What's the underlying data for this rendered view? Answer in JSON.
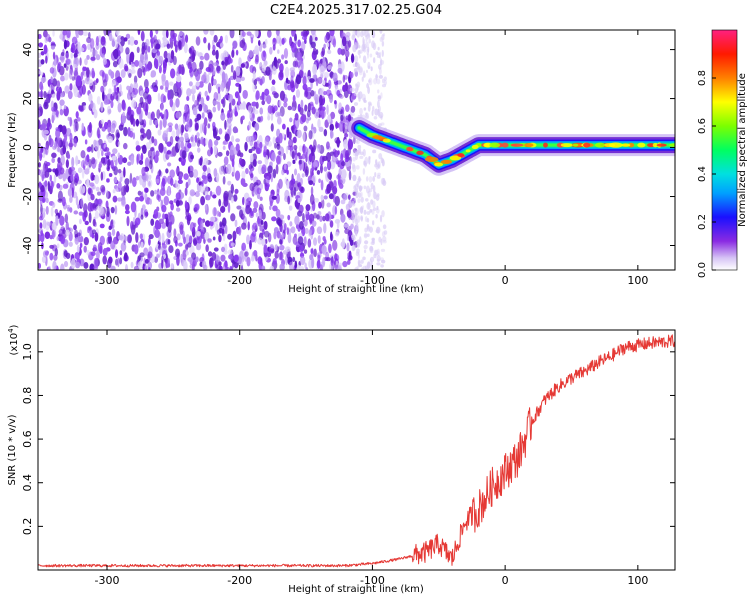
{
  "title": "C2E4.2025.317.02.25.G04",
  "chart_data": [
    {
      "type": "heatmap",
      "xlabel": "Height of straight line (km)",
      "ylabel": "Frequency (Hz)",
      "xlim": [
        -352,
        128
      ],
      "ylim": [
        -50,
        48
      ],
      "xticks": [
        -300,
        -200,
        -100,
        0,
        100
      ],
      "yticks": [
        -40,
        -20,
        0,
        20,
        40
      ],
      "colorbar": {
        "label": "Normalized spectral amplitude",
        "range": [
          0,
          1
        ],
        "ticks": [
          "0.0",
          "0.2",
          "0.4",
          "0.6",
          "0.8"
        ]
      },
      "ridge": {
        "x": [
          -110,
          -100,
          -90,
          -80,
          -70,
          -60,
          -50,
          -40,
          -30,
          -20,
          -10,
          0,
          20,
          40,
          60,
          80,
          100,
          128
        ],
        "freq": [
          8,
          5,
          3,
          1,
          -1,
          -3,
          -7,
          -5,
          -2,
          1,
          1,
          1,
          1,
          1,
          1,
          1,
          1,
          1
        ]
      }
    },
    {
      "type": "line",
      "xlabel": "Height of straight line (km)",
      "ylabel": "SNR (10 * v/v)",
      "yscale_label": "(x10",
      "yscale_exp": "4",
      "yscale_close": ")",
      "xlim": [
        -352,
        128
      ],
      "ylim": [
        0,
        1.1
      ],
      "xticks": [
        -300,
        -200,
        -100,
        0,
        100
      ],
      "yticks": [
        "0.2",
        "0.4",
        "0.6",
        "0.8",
        "1.0"
      ],
      "series": [
        {
          "x": [
            -352,
            -300,
            -200,
            -120,
            -100,
            -80,
            -60,
            -50,
            -40,
            -30,
            -20,
            -10,
            0,
            10,
            20,
            30,
            40,
            50,
            60,
            70,
            80,
            90,
            100,
            110,
            128
          ],
          "values": [
            0.02,
            0.02,
            0.02,
            0.02,
            0.03,
            0.05,
            0.08,
            0.12,
            0.05,
            0.22,
            0.28,
            0.38,
            0.45,
            0.52,
            0.68,
            0.78,
            0.84,
            0.88,
            0.91,
            0.95,
            0.98,
            1.02,
            1.03,
            1.04,
            1.05
          ]
        }
      ]
    }
  ],
  "colors": {
    "line": "#e53935",
    "axis": "#000000"
  }
}
